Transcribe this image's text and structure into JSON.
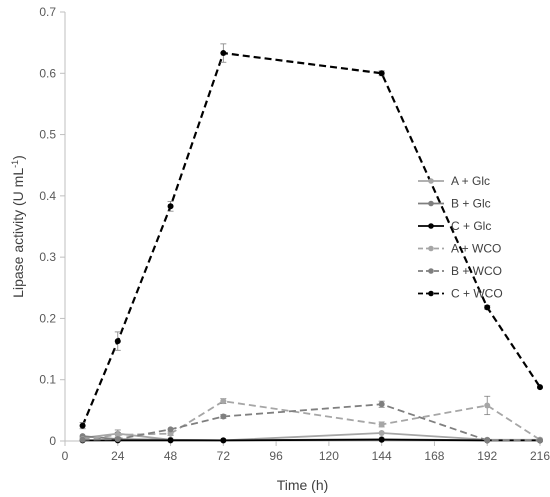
{
  "chart_data": {
    "type": "line",
    "title": "",
    "xlabel": "Time (h)",
    "ylabel": "Lipase activity (U mL",
    "ylabel_sup": "-1",
    "ylabel_close": ")",
    "xlim": [
      0,
      216
    ],
    "ylim": [
      0,
      0.7
    ],
    "xticks": [
      0,
      24,
      48,
      72,
      96,
      120,
      144,
      168,
      192,
      216
    ],
    "yticks": [
      0,
      0.1,
      0.2,
      0.3,
      0.4,
      0.5,
      0.6,
      0.7
    ],
    "xtick_labels": [
      "0",
      "24",
      "48",
      "72",
      "96",
      "120",
      "144",
      "168",
      "192",
      "216"
    ],
    "ytick_labels": [
      "0",
      "0.1",
      "0.2",
      "0.3",
      "0.4",
      "0.5",
      "0.6",
      "0.7"
    ],
    "grid": false,
    "legend_position": "right",
    "series": [
      {
        "name": "A + Glc",
        "color": "#a6a6a6",
        "dash": "solid",
        "points": [
          [
            8,
            0.005
          ],
          [
            24,
            0.012
          ],
          [
            48,
            0.002
          ],
          [
            72,
            0.001
          ],
          [
            144,
            0.013
          ],
          [
            192,
            0.002
          ],
          [
            216,
            0.002
          ]
        ],
        "errors": [
          0.002,
          0.006,
          0.001,
          0.001,
          0.002,
          0.001,
          0.001
        ]
      },
      {
        "name": "B + Glc",
        "color": "#7f7f7f",
        "dash": "solid",
        "points": [
          [
            8,
            0.008
          ],
          [
            24,
            0.003
          ],
          [
            48,
            0.002
          ],
          [
            72,
            0.001
          ],
          [
            144,
            0.003
          ],
          [
            192,
            0.001
          ],
          [
            216,
            0.001
          ]
        ],
        "errors": [
          0.002,
          0.002,
          0.001,
          0.001,
          0.001,
          0.001,
          0.001
        ]
      },
      {
        "name": "C + Glc",
        "color": "#000000",
        "dash": "solid",
        "points": [
          [
            8,
            0.001
          ],
          [
            24,
            0.001
          ],
          [
            48,
            0.001
          ],
          [
            72,
            0.001
          ],
          [
            144,
            0.002
          ],
          [
            192,
            0.001
          ],
          [
            216,
            0.001
          ]
        ],
        "errors": [
          0.001,
          0.001,
          0.001,
          0.001,
          0.001,
          0.001,
          0.001
        ]
      },
      {
        "name": "A + WCO",
        "color": "#a6a6a6",
        "dash": "dashed",
        "points": [
          [
            8,
            0.003
          ],
          [
            24,
            0.01
          ],
          [
            48,
            0.012
          ],
          [
            72,
            0.065
          ],
          [
            144,
            0.027
          ],
          [
            192,
            0.058
          ],
          [
            216,
            0.002
          ]
        ],
        "errors": [
          0.002,
          0.004,
          0.003,
          0.004,
          0.004,
          0.015,
          0.001
        ]
      },
      {
        "name": "B + WCO",
        "color": "#7f7f7f",
        "dash": "dashed",
        "points": [
          [
            8,
            0.002
          ],
          [
            24,
            0.003
          ],
          [
            48,
            0.019
          ],
          [
            72,
            0.04
          ],
          [
            144,
            0.06
          ],
          [
            192,
            0.001
          ],
          [
            216,
            0.001
          ]
        ],
        "errors": [
          0.001,
          0.002,
          0.002,
          0.003,
          0.005,
          0.001,
          0.001
        ]
      },
      {
        "name": "C + WCO",
        "color": "#000000",
        "dash": "dashed",
        "points": [
          [
            8,
            0.025
          ],
          [
            24,
            0.163
          ],
          [
            48,
            0.383
          ],
          [
            72,
            0.633
          ],
          [
            144,
            0.6
          ],
          [
            192,
            0.218
          ],
          [
            216,
            0.088
          ]
        ],
        "errors": [
          0.005,
          0.015,
          0.008,
          0.015,
          0.004,
          0.003,
          0.002
        ]
      }
    ]
  }
}
